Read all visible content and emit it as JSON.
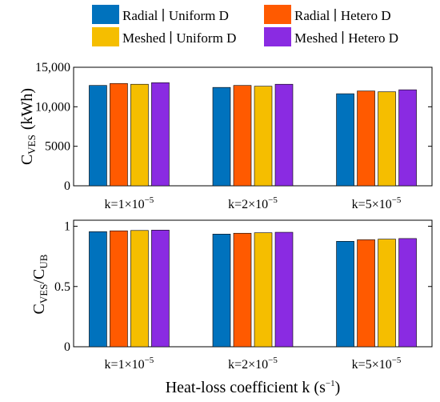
{
  "chart_data": [
    {
      "type": "bar",
      "categories": [
        "k=1×10",
        "k=2×10",
        "k=5×10"
      ],
      "category_exponent": "−5",
      "series": [
        {
          "name": "Radial ∣ Uniform D",
          "color": "#0072BD",
          "values": [
            12700,
            12450,
            11650
          ]
        },
        {
          "name": "Radial ∣ Hetero D",
          "color": "#FF5A00",
          "values": [
            12950,
            12700,
            12000
          ]
        },
        {
          "name": "Meshed ∣ Uniform D",
          "color": "#F5BE00",
          "values": [
            12850,
            12600,
            11900
          ]
        },
        {
          "name": "Meshed ∣ Hetero D",
          "color": "#8A2BE2",
          "values": [
            13050,
            12850,
            12150
          ]
        }
      ],
      "ylabel_main": "C",
      "ylabel_sub": "VES",
      "ylabel_unit": "(kWh)",
      "ylim": [
        0,
        15000
      ],
      "yticks": [
        0,
        5000,
        10000,
        15000
      ],
      "ytick_labels": [
        "0",
        "5000",
        "10,000",
        "15,000"
      ],
      "grid": false,
      "legend": "top"
    },
    {
      "type": "bar",
      "categories": [
        "k=1×10",
        "k=2×10",
        "k=5×10"
      ],
      "category_exponent": "−5",
      "series": [
        {
          "name": "Radial ∣ Uniform D",
          "color": "#0072BD",
          "values": [
            0.955,
            0.935,
            0.875
          ]
        },
        {
          "name": "Radial ∣ Hetero D",
          "color": "#FF5A00",
          "values": [
            0.962,
            0.942,
            0.888
          ]
        },
        {
          "name": "Meshed ∣ Uniform D",
          "color": "#F5BE00",
          "values": [
            0.965,
            0.946,
            0.893
          ]
        },
        {
          "name": "Meshed ∣ Hetero D",
          "color": "#8A2BE2",
          "values": [
            0.968,
            0.95,
            0.898
          ]
        }
      ],
      "ylabel_a": "C",
      "ylabel_a_sub": "VES",
      "ylabel_b": "/C",
      "ylabel_b_sub": "UB",
      "ylim": [
        0,
        1.05
      ],
      "yticks": [
        0,
        0.5,
        1
      ],
      "ytick_labels": [
        "0",
        "0.5",
        "1"
      ],
      "grid": false,
      "xlabel_text": "Heat-loss  coefficient  k  (s",
      "xlabel_exp": "−1",
      "xlabel_close": ")"
    }
  ]
}
